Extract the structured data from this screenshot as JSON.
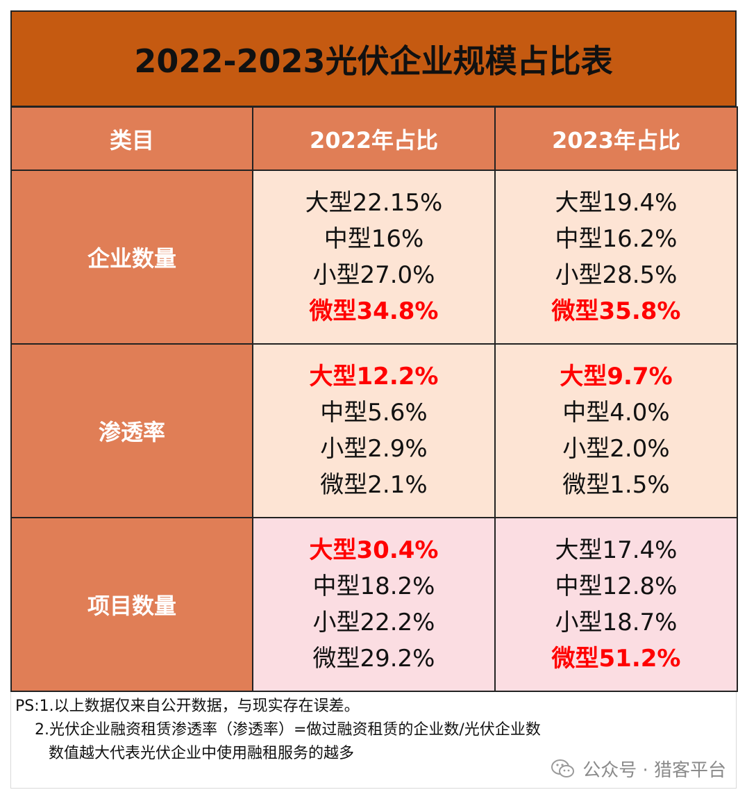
{
  "title": "2022-2023光伏企业规模占比表",
  "headers": [
    "类目",
    "2022年占比",
    "2023年占比"
  ],
  "rows": [
    {
      "category": "企业数量",
      "y2022": [
        {
          "text": "大型22.15%",
          "highlight": false
        },
        {
          "text": "中型16%",
          "highlight": false
        },
        {
          "text": "小型27.0%",
          "highlight": false
        },
        {
          "text": "微型34.8%",
          "highlight": true
        }
      ],
      "y2023": [
        {
          "text": "大型19.4%",
          "highlight": false
        },
        {
          "text": "中型16.2%",
          "highlight": false
        },
        {
          "text": "小型28.5%",
          "highlight": false
        },
        {
          "text": "微型35.8%",
          "highlight": true
        }
      ]
    },
    {
      "category": "渗透率",
      "y2022": [
        {
          "text": "大型12.2%",
          "highlight": true
        },
        {
          "text": "中型5.6%",
          "highlight": false
        },
        {
          "text": "小型2.9%",
          "highlight": false
        },
        {
          "text": "微型2.1%",
          "highlight": false
        }
      ],
      "y2023": [
        {
          "text": "大型9.7%",
          "highlight": true
        },
        {
          "text": "中型4.0%",
          "highlight": false
        },
        {
          "text": "小型2.0%",
          "highlight": false
        },
        {
          "text": "微型1.5%",
          "highlight": false
        }
      ]
    },
    {
      "category": "项目数量",
      "y2022": [
        {
          "text": "大型30.4%",
          "highlight": true
        },
        {
          "text": "中型18.2%",
          "highlight": false
        },
        {
          "text": "小型22.2%",
          "highlight": false
        },
        {
          "text": "微型29.2%",
          "highlight": false
        }
      ],
      "y2023": [
        {
          "text": "大型17.4%",
          "highlight": false
        },
        {
          "text": "中型12.8%",
          "highlight": false
        },
        {
          "text": "小型18.7%",
          "highlight": false
        },
        {
          "text": "微型51.2%",
          "highlight": true
        }
      ]
    }
  ],
  "notes": [
    "PS:1.以上数据仅来自公开数据，与现实存在误差。",
    "2.光伏企业融资租赁渗透率（渗透率）=做过融资租赁的企业数/光伏企业数",
    "数值越大代表光伏企业中使用融租服务的越多"
  ],
  "watermark": "公众号 · 猎客平台",
  "watermark_icon": "wechat-icon",
  "colors": {
    "title_bg": "#c55a11",
    "header_bg": "#e07e56",
    "row_peach": "#fde4d4",
    "row_pink": "#fbdde2",
    "highlight": "#ff0000"
  }
}
